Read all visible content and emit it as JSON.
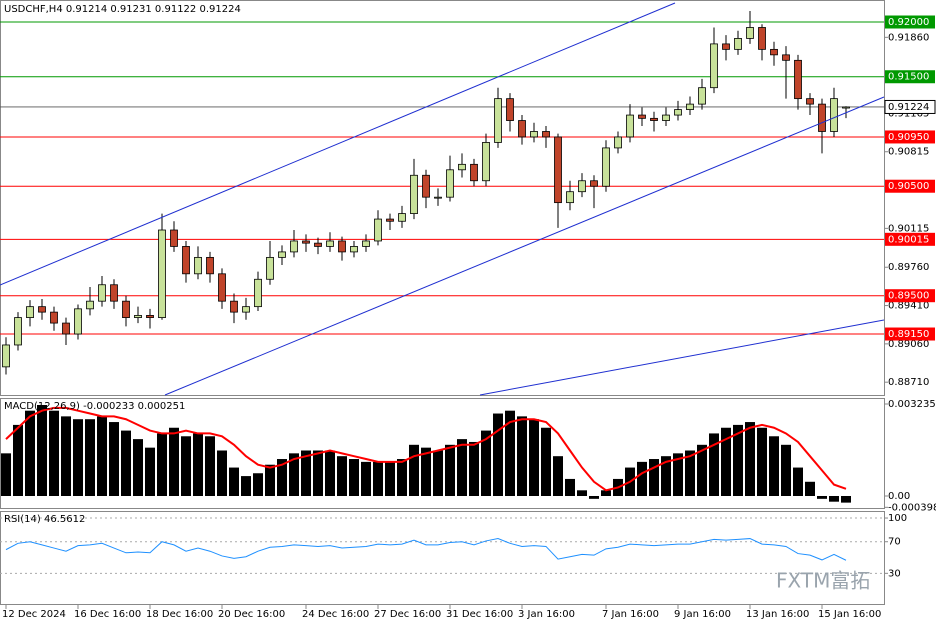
{
  "chart_data": [
    {
      "type": "candlestick",
      "title": "USDCHF,H4  0.91214 0.91231 0.91122 0.91224",
      "categories": [
        "12 Dec 2024",
        null,
        null,
        null,
        null,
        null,
        "16 Dec 16:00",
        null,
        null,
        null,
        null,
        null,
        "18 Dec 16:00",
        null,
        null,
        null,
        null,
        null,
        "20 Dec 16:00",
        null,
        null,
        null,
        null,
        null,
        null,
        "24 Dec 16:00",
        null,
        null,
        null,
        null,
        null,
        "27 Dec 16:00",
        null,
        null,
        null,
        null,
        null,
        "31 Dec 16:00",
        null,
        null,
        null,
        null,
        null,
        "3 Jan 16:00",
        null,
        null,
        null,
        null,
        null,
        null,
        "7 Jan 16:00",
        null,
        null,
        null,
        null,
        null,
        "9 Jan 16:00",
        null,
        null,
        null,
        null,
        null,
        "13 Jan 16:00",
        null,
        null,
        null,
        null,
        null,
        "15 Jan 16:00",
        null,
        null
      ],
      "ohlc": [
        [
          0.8885,
          0.8912,
          0.8878,
          0.8905
        ],
        [
          0.8905,
          0.8935,
          0.89,
          0.893
        ],
        [
          0.893,
          0.8946,
          0.8922,
          0.894
        ],
        [
          0.894,
          0.8947,
          0.8928,
          0.8935
        ],
        [
          0.8935,
          0.894,
          0.8918,
          0.8925
        ],
        [
          0.8925,
          0.893,
          0.8905,
          0.8915
        ],
        [
          0.8915,
          0.8942,
          0.891,
          0.8938
        ],
        [
          0.8938,
          0.8958,
          0.8932,
          0.8945
        ],
        [
          0.8945,
          0.8968,
          0.894,
          0.896
        ],
        [
          0.896,
          0.8965,
          0.8938,
          0.8945
        ],
        [
          0.8945,
          0.895,
          0.8922,
          0.893
        ],
        [
          0.893,
          0.894,
          0.8925,
          0.8932
        ],
        [
          0.8932,
          0.8938,
          0.892,
          0.893
        ],
        [
          0.893,
          0.9025,
          0.8928,
          0.901
        ],
        [
          0.901,
          0.9018,
          0.899,
          0.8995
        ],
        [
          0.8995,
          0.9,
          0.8962,
          0.897
        ],
        [
          0.897,
          0.8995,
          0.8965,
          0.8985
        ],
        [
          0.8985,
          0.899,
          0.8962,
          0.897
        ],
        [
          0.897,
          0.8975,
          0.8938,
          0.8945
        ],
        [
          0.8945,
          0.8952,
          0.8925,
          0.8935
        ],
        [
          0.8935,
          0.8948,
          0.8928,
          0.894
        ],
        [
          0.894,
          0.8972,
          0.8936,
          0.8965
        ],
        [
          0.8965,
          0.9,
          0.896,
          0.8985
        ],
        [
          0.8985,
          0.8996,
          0.8978,
          0.899
        ],
        [
          0.899,
          0.901,
          0.8985,
          0.9
        ],
        [
          0.9,
          0.9006,
          0.899,
          0.8998
        ],
        [
          0.8998,
          0.9003,
          0.8988,
          0.8995
        ],
        [
          0.8995,
          0.9008,
          0.899,
          0.9
        ],
        [
          0.9,
          0.9004,
          0.8982,
          0.899
        ],
        [
          0.899,
          0.9,
          0.8985,
          0.8995
        ],
        [
          0.8995,
          0.9006,
          0.899,
          0.9
        ],
        [
          0.9,
          0.9028,
          0.8996,
          0.902
        ],
        [
          0.902,
          0.9025,
          0.901,
          0.9018
        ],
        [
          0.9018,
          0.9032,
          0.9012,
          0.9025
        ],
        [
          0.9025,
          0.9075,
          0.902,
          0.906
        ],
        [
          0.906,
          0.9065,
          0.903,
          0.904
        ],
        [
          0.904,
          0.9048,
          0.9032,
          0.904
        ],
        [
          0.904,
          0.9078,
          0.9036,
          0.9065
        ],
        [
          0.9065,
          0.908,
          0.9058,
          0.907
        ],
        [
          0.907,
          0.9075,
          0.905,
          0.9055
        ],
        [
          0.9055,
          0.9098,
          0.905,
          0.909
        ],
        [
          0.909,
          0.914,
          0.9085,
          0.913
        ],
        [
          0.913,
          0.9135,
          0.91,
          0.911
        ],
        [
          0.911,
          0.9115,
          0.9088,
          0.9095
        ],
        [
          0.9095,
          0.9108,
          0.909,
          0.91
        ],
        [
          0.91,
          0.9105,
          0.9085,
          0.9095
        ],
        [
          0.9095,
          0.9098,
          0.9012,
          0.9035
        ],
        [
          0.9035,
          0.9055,
          0.9028,
          0.9045
        ],
        [
          0.9045,
          0.9062,
          0.904,
          0.9055
        ],
        [
          0.9055,
          0.906,
          0.903,
          0.905
        ],
        [
          0.905,
          0.9092,
          0.9045,
          0.9085
        ],
        [
          0.9085,
          0.91,
          0.908,
          0.9095
        ],
        [
          0.9095,
          0.9125,
          0.909,
          0.9115
        ],
        [
          0.9115,
          0.9122,
          0.9105,
          0.9112
        ],
        [
          0.9112,
          0.9118,
          0.91,
          0.911
        ],
        [
          0.911,
          0.9122,
          0.9105,
          0.9115
        ],
        [
          0.9115,
          0.9128,
          0.911,
          0.912
        ],
        [
          0.912,
          0.9132,
          0.9115,
          0.9125
        ],
        [
          0.9125,
          0.9148,
          0.912,
          0.914
        ],
        [
          0.914,
          0.9195,
          0.9135,
          0.918
        ],
        [
          0.918,
          0.9188,
          0.9165,
          0.9175
        ],
        [
          0.9175,
          0.9192,
          0.917,
          0.9185
        ],
        [
          0.9185,
          0.921,
          0.918,
          0.9195
        ],
        [
          0.9195,
          0.9198,
          0.9165,
          0.9175
        ],
        [
          0.9175,
          0.9182,
          0.916,
          0.917
        ],
        [
          0.917,
          0.9178,
          0.913,
          0.9165
        ],
        [
          0.9165,
          0.917,
          0.912,
          0.913
        ],
        [
          0.913,
          0.9135,
          0.9115,
          0.9125
        ],
        [
          0.9125,
          0.913,
          0.908,
          0.91
        ],
        [
          0.91,
          0.914,
          0.9095,
          0.913
        ],
        [
          0.91214,
          0.91231,
          0.91122,
          0.91224
        ]
      ],
      "up_color": "#c8e29a",
      "down_color": "#c0442a",
      "ylim": [
        0.88593,
        0.92201
      ],
      "yticks": [
        {
          "value": 0.9186,
          "label": "0.91860"
        },
        {
          "value": 0.91165,
          "label": "0.91165"
        },
        {
          "value": 0.90815,
          "label": "0.90815"
        },
        {
          "value": 0.90115,
          "label": "0.90115"
        },
        {
          "value": 0.8976,
          "label": "0.89760"
        },
        {
          "value": 0.8941,
          "label": "0.89410"
        },
        {
          "value": 0.8906,
          "label": "0.89060"
        },
        {
          "value": 0.8871,
          "label": "0.88710"
        }
      ],
      "levels": [
        {
          "value": 0.92,
          "label": "0.92000",
          "color": "#009900"
        },
        {
          "value": 0.915,
          "label": "0.91500",
          "color": "#009900"
        },
        {
          "value": 0.9095,
          "label": "0.90950",
          "color": "#ff0000"
        },
        {
          "value": 0.905,
          "label": "0.90500",
          "color": "#ff0000"
        },
        {
          "value": 0.90015,
          "label": "0.90015",
          "color": "#ff0000"
        },
        {
          "value": 0.895,
          "label": "0.89500",
          "color": "#ff0000"
        },
        {
          "value": 0.8915,
          "label": "0.89150",
          "color": "#ff0000"
        }
      ],
      "last_price": {
        "value": 0.91224,
        "label": "0.91224"
      }
    },
    {
      "type": "macd",
      "title": "MACD(12,26,9) -0.000233 0.000251",
      "histogram": {
        "color": "#000000",
        "values": [
          0.0015,
          0.0025,
          0.003,
          0.0032,
          0.003,
          0.0028,
          0.0027,
          0.0027,
          0.0028,
          0.0026,
          0.0023,
          0.002,
          0.0017,
          0.0022,
          0.0024,
          0.0021,
          0.0022,
          0.0021,
          0.0016,
          0.001,
          0.0007,
          0.0008,
          0.0011,
          0.0013,
          0.0015,
          0.0016,
          0.0016,
          0.0016,
          0.0014,
          0.0013,
          0.0012,
          0.0012,
          0.0012,
          0.0013,
          0.0018,
          0.0017,
          0.0016,
          0.0018,
          0.002,
          0.0019,
          0.0023,
          0.0029,
          0.003,
          0.0028,
          0.0027,
          0.0024,
          0.0014,
          0.0006,
          0.0002,
          -0.0001,
          0.0002,
          0.0006,
          0.001,
          0.0012,
          0.0013,
          0.0014,
          0.0015,
          0.0016,
          0.0018,
          0.0022,
          0.0024,
          0.0025,
          0.0026,
          0.0024,
          0.0021,
          0.0018,
          0.001,
          0.0005,
          -0.0001,
          -0.0002,
          -0.000233
        ]
      },
      "signal": {
        "color": "#ff0000",
        "values": [
          0.002,
          0.0024,
          0.0028,
          0.003,
          0.0031,
          0.0031,
          0.003,
          0.0029,
          0.0028,
          0.0028,
          0.0027,
          0.0025,
          0.0023,
          0.0022,
          0.0022,
          0.0023,
          0.0022,
          0.0022,
          0.0021,
          0.0018,
          0.0014,
          0.0011,
          0.001,
          0.0011,
          0.0013,
          0.0014,
          0.0015,
          0.0016,
          0.0015,
          0.0014,
          0.0013,
          0.0012,
          0.0012,
          0.0012,
          0.0014,
          0.0015,
          0.0016,
          0.0017,
          0.0018,
          0.0018,
          0.002,
          0.0023,
          0.0026,
          0.0027,
          0.0027,
          0.0026,
          0.0022,
          0.0016,
          0.001,
          0.0005,
          0.0002,
          0.0003,
          0.0005,
          0.0008,
          0.001,
          0.0012,
          0.0013,
          0.0014,
          0.0016,
          0.0018,
          0.002,
          0.0022,
          0.0024,
          0.0025,
          0.0024,
          0.0022,
          0.0019,
          0.0014,
          0.0009,
          0.0004,
          0.000251
        ]
      },
      "ylim": [
        -0.000422,
        0.003446
      ],
      "yticks": [
        0.003235,
        {
          "value": 0,
          "label": "0.00"
        },
        -0.000398
      ]
    },
    {
      "type": "line",
      "title": "RSI(14) 46.5612",
      "color": "#1e90ff",
      "values": [
        60,
        68,
        70,
        66,
        62,
        58,
        65,
        66,
        68,
        62,
        56,
        57,
        56,
        70,
        66,
        58,
        62,
        58,
        52,
        49,
        51,
        58,
        63,
        64,
        66,
        65,
        64,
        65,
        62,
        63,
        64,
        67,
        66,
        67,
        72,
        66,
        66,
        69,
        70,
        66,
        71,
        74,
        68,
        64,
        65,
        64,
        48,
        51,
        54,
        53,
        61,
        63,
        67,
        66,
        65,
        66,
        67,
        67,
        70,
        73,
        72,
        73,
        74,
        67,
        66,
        64,
        55,
        53,
        47,
        54,
        46.5612
      ],
      "ylim": [
        -10.1,
        108.9
      ],
      "yticks": [
        100,
        70,
        30
      ]
    }
  ],
  "watermark": "FXTM富拓"
}
